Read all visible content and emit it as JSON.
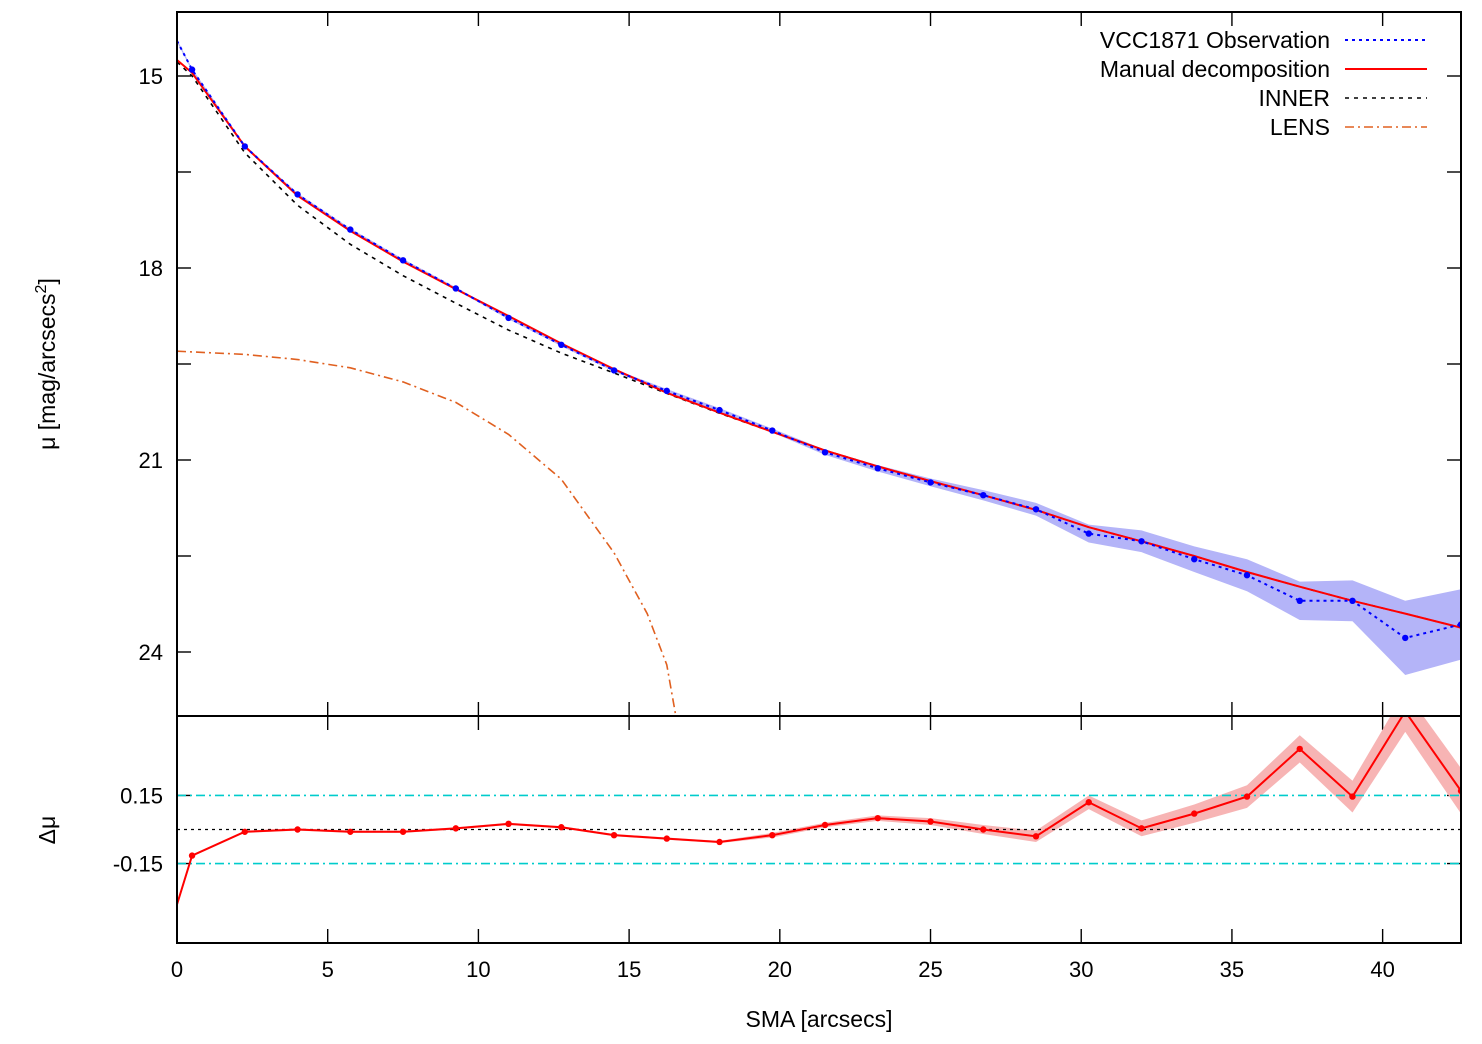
{
  "chart_data": [
    {
      "type": "line",
      "panel": "top",
      "ylabel": "μ [mag/arcsecs²]",
      "ylabel_parts": {
        "prefix": "μ [mag/arcsecs",
        "sup": "2",
        "suffix": "]"
      },
      "xlim": [
        0,
        42.6
      ],
      "ylim": [
        14.0,
        25.0
      ],
      "y_inverted": true,
      "y_ticks": [
        15,
        16.5,
        18,
        19.5,
        21,
        22.5,
        24
      ],
      "y_tick_labels": [
        "15",
        "",
        "18",
        "",
        "21",
        "",
        "24"
      ],
      "legend_position": "top-right",
      "series": [
        {
          "name": "VCC1871 Observation",
          "style": "dotted",
          "color": "#0000ff",
          "markers": true,
          "x": [
            0.0,
            0.5,
            2.25,
            4.0,
            5.75,
            7.5,
            9.25,
            11.0,
            12.75,
            14.5,
            16.25,
            18.0,
            19.75,
            21.5,
            23.25,
            25.0,
            26.75,
            28.5,
            30.25,
            32.0,
            33.75,
            35.5,
            37.25,
            39.0,
            40.75,
            42.6
          ],
          "y": [
            14.45,
            14.9,
            16.1,
            16.85,
            17.4,
            17.88,
            18.32,
            18.78,
            19.2,
            19.6,
            19.92,
            20.22,
            20.54,
            20.88,
            21.13,
            21.35,
            21.55,
            21.77,
            22.15,
            22.27,
            22.55,
            22.8,
            23.2,
            23.2,
            23.78,
            23.57
          ],
          "y_err": [
            0.02,
            0.02,
            0.02,
            0.02,
            0.02,
            0.02,
            0.02,
            0.02,
            0.02,
            0.02,
            0.03,
            0.03,
            0.03,
            0.04,
            0.05,
            0.06,
            0.08,
            0.1,
            0.14,
            0.17,
            0.2,
            0.25,
            0.3,
            0.32,
            0.58,
            0.55
          ]
        },
        {
          "name": "Manual decomposition",
          "style": "solid",
          "color": "#ff0000",
          "x": [
            0.0,
            0.5,
            2.25,
            4.0,
            5.75,
            7.5,
            9.25,
            11.0,
            12.75,
            14.5,
            16.25,
            18.0,
            19.75,
            21.5,
            23.25,
            25.0,
            26.75,
            28.5,
            30.25,
            32.0,
            33.75,
            35.5,
            37.25,
            39.0,
            40.75,
            42.6
          ],
          "y": [
            14.75,
            14.95,
            16.1,
            16.87,
            17.42,
            17.9,
            18.33,
            18.75,
            19.18,
            19.58,
            19.95,
            20.26,
            20.56,
            20.85,
            21.1,
            21.33,
            21.55,
            21.78,
            22.05,
            22.27,
            22.5,
            22.75,
            22.98,
            23.2,
            23.4,
            23.62
          ]
        },
        {
          "name": "INNER",
          "style": "dashed",
          "color": "#000000",
          "x": [
            0.0,
            0.5,
            2.25,
            4.0,
            5.75,
            7.5,
            9.25,
            11.0,
            12.75,
            14.5,
            16.25,
            18.0,
            19.75,
            21.5,
            23.25,
            25.0,
            26.75,
            28.5,
            30.25,
            32.0,
            33.75,
            35.5,
            37.25,
            39.0,
            40.75,
            42.6
          ],
          "y": [
            14.78,
            15.0,
            16.2,
            17.02,
            17.63,
            18.12,
            18.55,
            18.97,
            19.33,
            19.64,
            19.96,
            20.27,
            20.56,
            20.85,
            21.1,
            21.33,
            21.55,
            21.78,
            22.05,
            22.27,
            22.5,
            22.75,
            22.98,
            23.2,
            23.4,
            23.62
          ]
        },
        {
          "name": "LENS",
          "style": "dash-dot",
          "color": "#e06020",
          "x": [
            0.0,
            2.25,
            4.0,
            5.75,
            7.5,
            9.25,
            11.0,
            12.75,
            14.5,
            15.6,
            16.25,
            16.55
          ],
          "y": [
            19.3,
            19.35,
            19.43,
            19.56,
            19.78,
            20.1,
            20.6,
            21.3,
            22.45,
            23.4,
            24.2,
            25.0
          ]
        }
      ]
    },
    {
      "type": "line",
      "panel": "bottom",
      "xlabel": "SMA [arcsecs]",
      "ylabel": "Δμ",
      "xlim": [
        0,
        42.6
      ],
      "ylim": [
        -0.5,
        0.5
      ],
      "x_ticks": [
        0,
        5,
        10,
        15,
        20,
        25,
        30,
        35,
        40
      ],
      "x_tick_labels": [
        "0",
        "5",
        "10",
        "15",
        "20",
        "25",
        "30",
        "35",
        "40"
      ],
      "y_ticks": [
        0.15,
        -0.15
      ],
      "y_tick_labels": [
        "0.15",
        "-0.15"
      ],
      "reference_lines": [
        {
          "y": 0.15,
          "color": "#00cccc",
          "style": "dash-dot"
        },
        {
          "y": -0.15,
          "color": "#00cccc",
          "style": "dash-dot"
        },
        {
          "y": 0.0,
          "color": "#000000",
          "style": "dotted"
        }
      ],
      "series": [
        {
          "name": "",
          "style": "solid",
          "color": "#ff0000",
          "markers": true,
          "x": [
            0.0,
            0.5,
            2.25,
            4.0,
            5.75,
            7.5,
            9.25,
            11.0,
            12.75,
            14.5,
            16.25,
            18.0,
            19.75,
            21.5,
            23.25,
            25.0,
            26.75,
            28.5,
            30.25,
            32.0,
            33.75,
            35.5,
            37.25,
            39.0,
            40.75,
            42.6
          ],
          "y": [
            -0.33,
            -0.115,
            -0.01,
            0.0,
            -0.01,
            -0.01,
            0.005,
            0.025,
            0.01,
            -0.025,
            -0.04,
            -0.055,
            -0.025,
            0.02,
            0.05,
            0.035,
            0.0,
            -0.03,
            0.12,
            0.005,
            0.07,
            0.145,
            0.355,
            0.145,
            0.52,
            0.17
          ],
          "y_err": [
            0.005,
            0.005,
            0.005,
            0.005,
            0.005,
            0.005,
            0.005,
            0.005,
            0.005,
            0.005,
            0.005,
            0.005,
            0.01,
            0.01,
            0.012,
            0.015,
            0.02,
            0.025,
            0.03,
            0.035,
            0.04,
            0.05,
            0.06,
            0.07,
            0.09,
            0.1
          ]
        }
      ]
    }
  ]
}
